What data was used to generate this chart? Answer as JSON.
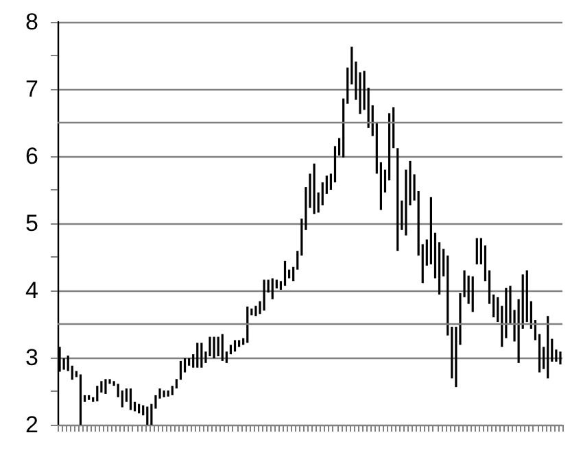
{
  "chart_data": {
    "type": "bar",
    "categories": [
      null,
      null,
      null,
      null,
      null,
      null,
      null,
      null,
      null,
      null,
      null,
      null,
      null,
      null,
      null,
      null,
      null,
      null,
      null,
      null,
      null,
      null,
      null,
      null,
      null,
      null,
      null,
      null,
      null,
      null,
      null,
      null,
      null,
      null,
      null,
      null,
      null,
      null,
      null,
      null,
      null,
      null,
      null,
      null,
      null,
      null,
      null,
      null,
      null,
      null,
      null,
      null,
      null,
      null,
      null,
      null,
      null,
      null,
      null,
      null,
      null,
      null,
      null,
      null,
      null,
      null,
      null,
      null,
      null,
      null,
      null,
      null,
      null,
      null,
      null,
      null,
      null,
      null,
      null,
      null,
      null,
      null,
      null,
      null,
      null,
      null,
      null,
      null,
      null,
      null,
      null,
      null,
      null,
      null,
      null,
      null,
      null,
      null,
      null,
      null,
      null,
      null,
      null,
      null,
      null,
      null,
      null,
      null,
      null,
      null,
      null,
      null,
      null,
      null,
      null,
      null,
      null,
      null,
      null,
      null,
      null
    ],
    "base": [
      2.79,
      2.82,
      2.8,
      2.67,
      2.71,
      2.0,
      2.34,
      2.37,
      2.34,
      2.35,
      2.48,
      2.46,
      2.61,
      2.58,
      2.41,
      2.26,
      2.34,
      2.22,
      2.2,
      2.17,
      2.14,
      2.0,
      2.0,
      2.24,
      2.39,
      2.41,
      2.42,
      2.44,
      2.54,
      2.67,
      2.78,
      2.88,
      2.85,
      2.85,
      2.85,
      2.92,
      3.02,
      2.99,
      3.02,
      2.95,
      2.92,
      3.05,
      3.09,
      3.16,
      3.19,
      3.22,
      3.63,
      3.62,
      3.65,
      3.7,
      3.97,
      3.87,
      4.03,
      4.01,
      4.07,
      4.18,
      4.14,
      4.31,
      4.52,
      4.9,
      5.23,
      5.14,
      5.16,
      5.27,
      5.44,
      5.5,
      5.61,
      6.01,
      5.98,
      6.78,
      7.07,
      6.84,
      6.63,
      6.69,
      6.42,
      6.3,
      5.74,
      5.2,
      5.46,
      5.64,
      6.12,
      4.59,
      4.9,
      4.82,
      5.27,
      5.34,
      4.52,
      4.11,
      4.37,
      4.39,
      4.18,
      3.94,
      4.21,
      3.33,
      2.69,
      2.56,
      3.19,
      3.9,
      3.8,
      3.68,
      4.39,
      4.39,
      4.14,
      3.8,
      3.6,
      3.53,
      3.16,
      3.29,
      3.5,
      3.24,
      2.92,
      3.43,
      3.53,
      3.43,
      3.26,
      2.78,
      2.83,
      2.69,
      2.94,
      2.94,
      2.9
    ],
    "values": [
      0.37,
      0.17,
      0.23,
      0.21,
      0.09,
      0.75,
      0.1,
      0.07,
      0.07,
      0.23,
      0.17,
      0.22,
      0.07,
      0.07,
      0.2,
      0.25,
      0.2,
      0.32,
      0.14,
      0.14,
      0.15,
      0.27,
      0.31,
      0.2,
      0.15,
      0.1,
      0.09,
      0.14,
      0.14,
      0.28,
      0.21,
      0.11,
      0.2,
      0.37,
      0.37,
      0.17,
      0.29,
      0.32,
      0.29,
      0.4,
      0.17,
      0.14,
      0.17,
      0.1,
      0.1,
      0.54,
      0.1,
      0.15,
      0.19,
      0.46,
      0.19,
      0.31,
      0.13,
      0.13,
      0.37,
      0.13,
      0.21,
      0.28,
      0.55,
      0.64,
      0.51,
      0.75,
      0.3,
      0.34,
      0.27,
      0.24,
      0.54,
      0.26,
      0.88,
      0.54,
      0.56,
      0.57,
      0.62,
      0.58,
      0.6,
      0.46,
      0.76,
      0.71,
      0.34,
      1.0,
      0.61,
      1.53,
      0.44,
      0.98,
      0.66,
      0.39,
      0.96,
      0.58,
      0.39,
      1.0,
      0.68,
      0.78,
      0.41,
      1.19,
      0.77,
      0.9,
      0.77,
      0.4,
      0.42,
      0.53,
      0.39,
      0.39,
      0.53,
      0.5,
      0.34,
      0.37,
      0.61,
      0.75,
      0.57,
      0.47,
      0.95,
      0.81,
      0.77,
      0.41,
      0.3,
      0.57,
      0.33,
      0.93,
      0.34,
      0.18,
      0.19
    ],
    "color": "#000000",
    "ylim": [
      2,
      8
    ],
    "yticks": [
      2,
      {
        "value": 2.5,
        "label": null
      },
      3,
      4,
      {
        "value": 4.5,
        "label": null
      },
      5,
      {
        "value": 5.5,
        "label": null
      },
      6,
      7,
      {
        "value": 7.5,
        "label": null
      },
      8
    ],
    "grid": "y",
    "tick_labels": "y",
    "ref_lines": [
      {
        "axis": "y",
        "value": 3.5,
        "color": "#808080"
      },
      {
        "axis": "y",
        "value": 6.5,
        "color": "#808080"
      }
    ]
  }
}
